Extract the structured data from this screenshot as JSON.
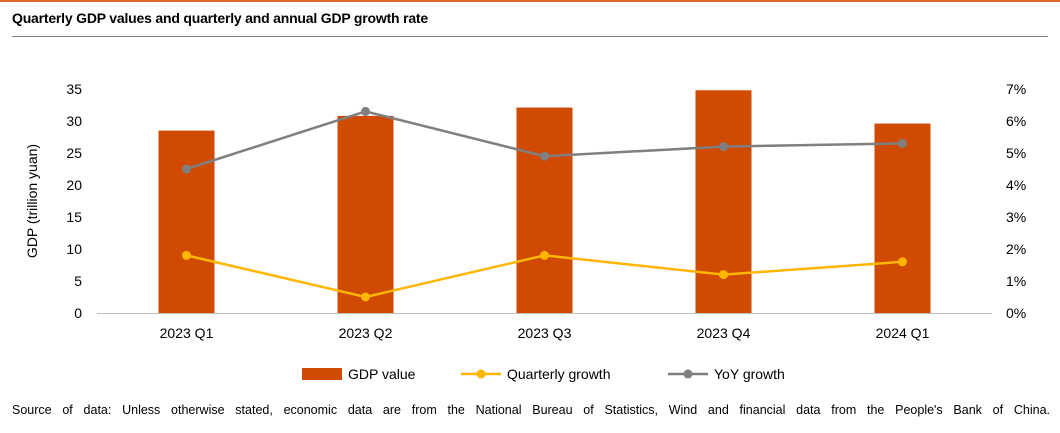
{
  "title": "Quarterly GDP values and quarterly and annual GDP growth rate",
  "source": "Source of data: Unless otherwise stated, economic data are from the National Bureau of Statistics, Wind and financial data from the People's Bank of China.",
  "colors": {
    "gdp": "#d04a02",
    "quarterly": "#ffb600",
    "yoy": "#7f7f7f",
    "accent": "#e0672a"
  },
  "chart_data": {
    "type": "bar",
    "categories": [
      "2023 Q1",
      "2023 Q2",
      "2023 Q3",
      "2023 Q4",
      "2024 Q1"
    ],
    "ylabel": "GDP (trillion yuan)",
    "ylim": [
      0,
      35
    ],
    "y_ticks": [
      "0",
      "5",
      "10",
      "15",
      "20",
      "25",
      "30",
      "35"
    ],
    "y2lim": [
      0,
      7
    ],
    "y2_ticks": [
      "0%",
      "1%",
      "2%",
      "3%",
      "4%",
      "5%",
      "6%",
      "7%"
    ],
    "grid": false,
    "legend_position": "bottom",
    "series": [
      {
        "name": "GDP value",
        "type": "bar",
        "axis": "left",
        "values": [
          28.5,
          30.8,
          32.1,
          34.8,
          29.6
        ]
      },
      {
        "name": "Quarterly growth",
        "type": "line",
        "axis": "right",
        "values": [
          1.8,
          0.5,
          1.8,
          1.2,
          1.6
        ]
      },
      {
        "name": "YoY growth",
        "type": "line",
        "axis": "right",
        "values": [
          4.5,
          6.3,
          4.9,
          5.2,
          5.3
        ]
      }
    ]
  }
}
